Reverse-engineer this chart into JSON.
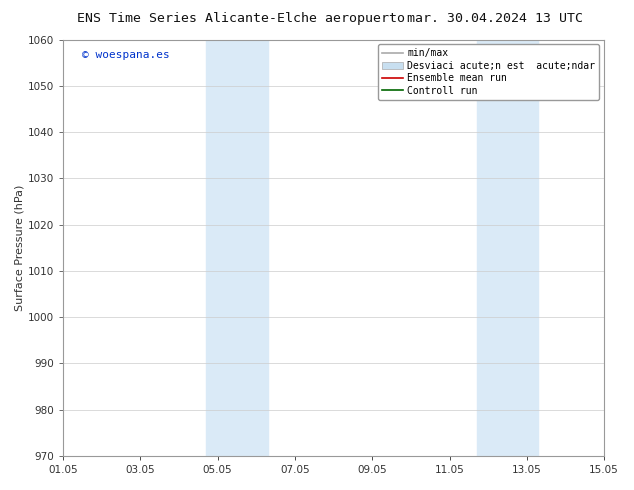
{
  "title_left": "ENS Time Series Alicante-Elche aeropuerto",
  "title_right": "mar. 30.04.2024 13 UTC",
  "ylabel": "Surface Pressure (hPa)",
  "ylim": [
    970,
    1060
  ],
  "yticks": [
    970,
    980,
    990,
    1000,
    1010,
    1020,
    1030,
    1040,
    1050,
    1060
  ],
  "xtick_labels": [
    "01.05",
    "03.05",
    "05.05",
    "07.05",
    "09.05",
    "11.05",
    "13.05",
    "15.05"
  ],
  "xtick_positions": [
    0,
    2,
    4,
    6,
    8,
    10,
    12,
    14
  ],
  "xlim": [
    0,
    14
  ],
  "watermark": "© woespana.es",
  "watermark_color": "#0033cc",
  "background_color": "#ffffff",
  "shaded_regions": [
    {
      "xmin": 3.7,
      "xmax": 5.3,
      "color": "#daeaf7"
    },
    {
      "xmin": 10.7,
      "xmax": 12.3,
      "color": "#daeaf7"
    }
  ],
  "legend_entries": [
    {
      "label": "min/max",
      "color": "#aaaaaa",
      "lw": 1.2,
      "linestyle": "-",
      "type": "line"
    },
    {
      "label": "Desviaci acute;n est  acute;ndar",
      "color": "#c8dff0",
      "lw": 8,
      "linestyle": "-",
      "type": "bar"
    },
    {
      "label": "Ensemble mean run",
      "color": "#cc0000",
      "lw": 1.2,
      "linestyle": "-",
      "type": "line"
    },
    {
      "label": "Controll run",
      "color": "#006600",
      "lw": 1.2,
      "linestyle": "-",
      "type": "line"
    }
  ],
  "title_fontsize": 9.5,
  "tick_fontsize": 7.5,
  "ylabel_fontsize": 8,
  "watermark_fontsize": 8,
  "legend_fontsize": 7,
  "grid_color": "#cccccc",
  "grid_lw": 0.5,
  "spine_color": "#999999",
  "tick_color": "#333333",
  "figwidth": 6.34,
  "figheight": 4.9,
  "dpi": 100
}
